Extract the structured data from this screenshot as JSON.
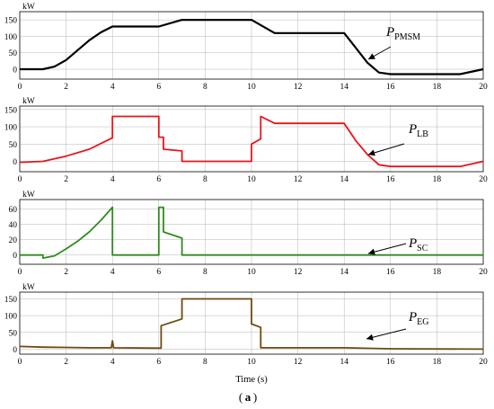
{
  "figure": {
    "caption_open": "(",
    "caption_letter": "a",
    "caption_close": ")",
    "xlabel": "Time (s)"
  },
  "chart_data": [
    {
      "type": "line",
      "ylabel": "kW",
      "legend_main": "P",
      "legend_sub": "PMSM",
      "color": "#000000",
      "xlim": [
        0,
        20
      ],
      "ylim": [
        -30,
        175
      ],
      "xticks": [
        0,
        2,
        4,
        6,
        8,
        10,
        12,
        14,
        16,
        18,
        20
      ],
      "yticks": [
        0,
        50,
        100,
        150
      ],
      "x": [
        0,
        1,
        1.5,
        2,
        2.5,
        3,
        3.5,
        4,
        6,
        7,
        10,
        11,
        14,
        14.5,
        15,
        15.5,
        16,
        19,
        20
      ],
      "y": [
        0,
        0,
        8,
        28,
        58,
        88,
        112,
        130,
        130,
        150,
        150,
        110,
        110,
        65,
        20,
        -10,
        -15,
        -15,
        0
      ]
    },
    {
      "type": "line",
      "ylabel": "kW",
      "legend_main": "P",
      "legend_sub": "LB",
      "color": "#e8141a",
      "xlim": [
        0,
        20
      ],
      "ylim": [
        -30,
        160
      ],
      "xticks": [
        0,
        2,
        4,
        6,
        8,
        10,
        12,
        14,
        16,
        18,
        20
      ],
      "yticks": [
        0,
        50,
        100,
        150
      ],
      "x": [
        0,
        1,
        2,
        3,
        4,
        4,
        6,
        6,
        6.2,
        6.2,
        7,
        7,
        10,
        10,
        10.4,
        10.4,
        11,
        14,
        14.5,
        15,
        15.5,
        16,
        19,
        20
      ],
      "y": [
        -3,
        0,
        15,
        35,
        68,
        130,
        130,
        70,
        70,
        35,
        30,
        0,
        0,
        50,
        65,
        130,
        110,
        110,
        60,
        20,
        -10,
        -15,
        -15,
        0
      ]
    },
    {
      "type": "line",
      "ylabel": "kW",
      "legend_main": "P",
      "legend_sub": "SC",
      "color": "#2f8b1e",
      "xlim": [
        0,
        20
      ],
      "ylim": [
        -12,
        72
      ],
      "xticks": [
        0,
        2,
        4,
        6,
        8,
        10,
        12,
        14,
        16,
        18,
        20
      ],
      "yticks": [
        0,
        20,
        40,
        60
      ],
      "x": [
        0,
        1,
        1,
        1.5,
        2,
        2.5,
        3,
        3.5,
        4,
        4,
        6,
        6,
        6.2,
        6.2,
        7,
        7,
        20
      ],
      "y": [
        0,
        0,
        -4,
        -1,
        8,
        18,
        30,
        45,
        62,
        0,
        0,
        62,
        62,
        30,
        22,
        0,
        0
      ]
    },
    {
      "type": "line",
      "ylabel": "kW",
      "legend_main": "P",
      "legend_sub": "EG",
      "color": "#6e4a10",
      "xlim": [
        0,
        20
      ],
      "ylim": [
        -15,
        170
      ],
      "xticks": [
        0,
        2,
        4,
        6,
        8,
        10,
        12,
        14,
        16,
        18,
        20
      ],
      "yticks": [
        0,
        50,
        100,
        150
      ],
      "x": [
        0,
        1,
        2,
        3,
        3.95,
        4,
        4.05,
        6,
        6.1,
        6.1,
        7,
        7,
        10,
        10,
        10.4,
        10.4,
        14,
        16,
        20
      ],
      "y": [
        8,
        6,
        5,
        4,
        4,
        25,
        4,
        3,
        3,
        70,
        90,
        150,
        150,
        75,
        65,
        4,
        4,
        1,
        0
      ]
    }
  ]
}
